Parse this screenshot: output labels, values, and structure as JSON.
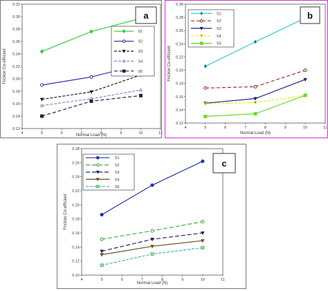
{
  "chart_data": [
    {
      "type": "line",
      "panel_label": "a",
      "xlabel": "Normal Load (N)",
      "ylabel": "Friction Co-efficient",
      "xlim": [
        4,
        11
      ],
      "ylim": [
        0.12,
        0.32
      ],
      "xticks": [
        "4",
        "5",
        "6",
        "7",
        "8",
        "9",
        "10",
        "11"
      ],
      "yticks": [
        "0.12",
        "0.14",
        "0.16",
        "0.18",
        "0.20",
        "0.22",
        "0.24",
        "0.26",
        "0.28",
        "0.30",
        "0.32"
      ],
      "legend_position": "middle-right",
      "x": [
        5,
        7.5,
        10
      ],
      "series": [
        {
          "name": "S1",
          "values": [
            0.244,
            0.276,
            0.297
          ],
          "color": "#33cc33",
          "dash": "",
          "marker": "diamond",
          "fill": "#33cc33"
        },
        {
          "name": "S2",
          "values": [
            0.19,
            0.203,
            0.223
          ],
          "color": "#3333aa",
          "dash": "",
          "marker": "circle",
          "fill": "#ffffff"
        },
        {
          "name": "S3",
          "values": [
            0.167,
            0.179,
            0.206
          ],
          "color": "#222222",
          "dash": "4,2",
          "marker": "triangle-down",
          "fill": "#222222"
        },
        {
          "name": "S4",
          "values": [
            0.157,
            0.168,
            0.182
          ],
          "color": "#8888cc",
          "dash": "4,2",
          "marker": "triangle",
          "fill": "#ffffff"
        },
        {
          "name": "S5",
          "values": [
            0.14,
            0.164,
            0.173
          ],
          "color": "#222244",
          "dash": "5,3",
          "marker": "square",
          "fill": "#222244"
        }
      ]
    },
    {
      "type": "line",
      "panel_label": "b",
      "xlabel": "Normal Load (N)",
      "ylabel": "Friction Co-efficient",
      "xlim": [
        4,
        11
      ],
      "ylim": [
        0.12,
        0.3
      ],
      "xticks": [
        "4",
        "5",
        "6",
        "7",
        "8",
        "9",
        "10",
        "11"
      ],
      "yticks": [
        "0.12",
        "0.14",
        "0.16",
        "0.18",
        "0.20",
        "0.22",
        "0.24",
        "0.26",
        "0.28",
        "0.30"
      ],
      "legend_position": "top-left",
      "x": [
        5,
        7.5,
        10
      ],
      "series": [
        {
          "name": "S1",
          "values": [
            0.206,
            0.243,
            0.279
          ],
          "color": "#33cccc",
          "dash": "",
          "marker": "diamond",
          "fill": "#224488"
        },
        {
          "name": "S2",
          "values": [
            0.173,
            0.175,
            0.2
          ],
          "color": "#993333",
          "dash": "5,3",
          "marker": "circle",
          "fill": "#ffffff"
        },
        {
          "name": "S3",
          "values": [
            0.15,
            0.157,
            0.186
          ],
          "color": "#222288",
          "dash": "",
          "marker": "triangle-down",
          "fill": "#222288"
        },
        {
          "name": "S4",
          "values": [
            0.149,
            0.151,
            0.162
          ],
          "color": "#eeee22",
          "dash": "4,2",
          "marker": "triangle-down",
          "fill": "#222222"
        },
        {
          "name": "S5",
          "values": [
            0.13,
            0.134,
            0.162
          ],
          "color": "#66dd22",
          "dash": "",
          "marker": "square",
          "fill": "#66dd22"
        }
      ]
    },
    {
      "type": "line",
      "panel_label": "c",
      "xlabel": "Normal Load (N)",
      "ylabel": "Friction Co-efficient",
      "xlim": [
        4,
        11
      ],
      "ylim": [
        0.1,
        0.28
      ],
      "xticks": [
        "4",
        "5",
        "6",
        "7",
        "8",
        "9",
        "10",
        "11"
      ],
      "yticks": [
        "0.10",
        "0.12",
        "0.14",
        "0.16",
        "0.18",
        "0.20",
        "0.22",
        "0.24",
        "0.26",
        "0.28"
      ],
      "legend_position": "top-left",
      "x": [
        5,
        7.5,
        10
      ],
      "series": [
        {
          "name": "S1",
          "values": [
            0.186,
            0.228,
            0.262
          ],
          "color": "#2233aa",
          "dash": "",
          "marker": "circle",
          "fill": "#2233aa"
        },
        {
          "name": "S2",
          "values": [
            0.151,
            0.163,
            0.176
          ],
          "color": "#44aa44",
          "dash": "6,3",
          "marker": "circle",
          "fill": "#ffffff"
        },
        {
          "name": "S3",
          "values": [
            0.134,
            0.151,
            0.16
          ],
          "color": "#222266",
          "dash": "6,3",
          "marker": "triangle-down",
          "fill": "#222266"
        },
        {
          "name": "S4",
          "values": [
            0.129,
            0.141,
            0.149
          ],
          "color": "#665522",
          "dash": "",
          "marker": "triangle-down",
          "fill": "#665522"
        },
        {
          "name": "S5",
          "values": [
            0.114,
            0.13,
            0.139
          ],
          "color": "#33bbbb",
          "dash": "4,2",
          "marker": "square",
          "fill": "#ffcc33"
        }
      ]
    }
  ]
}
